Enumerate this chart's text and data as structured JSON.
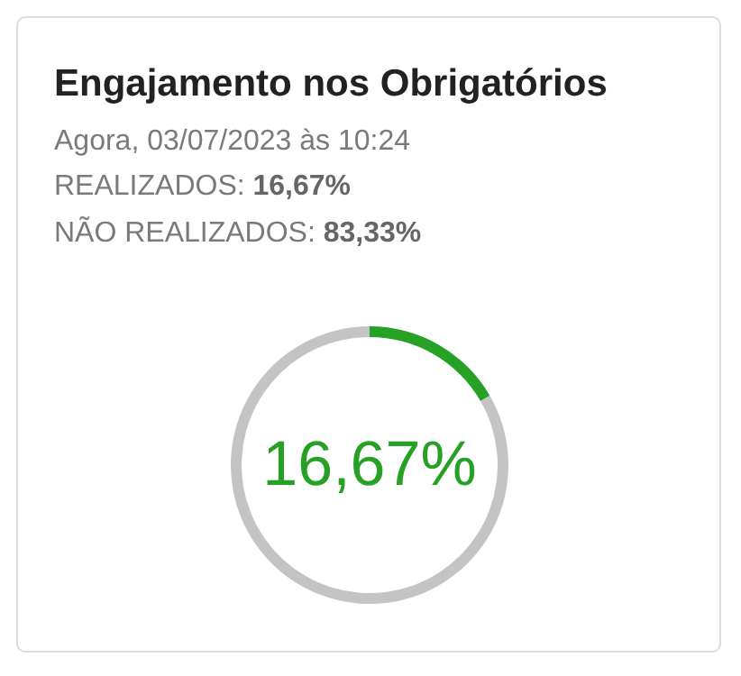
{
  "chart_data": {
    "type": "donut",
    "title": "Engajamento nos Obrigatórios",
    "subtitle": "Agora, 03/07/2023 às 10:24",
    "annotations": [
      "REALIZADOS: 16,67%",
      "NÃO REALIZADOS: 83,33%",
      "16,67%"
    ],
    "categories": [
      null,
      null
    ],
    "values": [
      16.67,
      83.33
    ],
    "colors": [
      "#26a126",
      "#c4c4c4"
    ]
  }
}
